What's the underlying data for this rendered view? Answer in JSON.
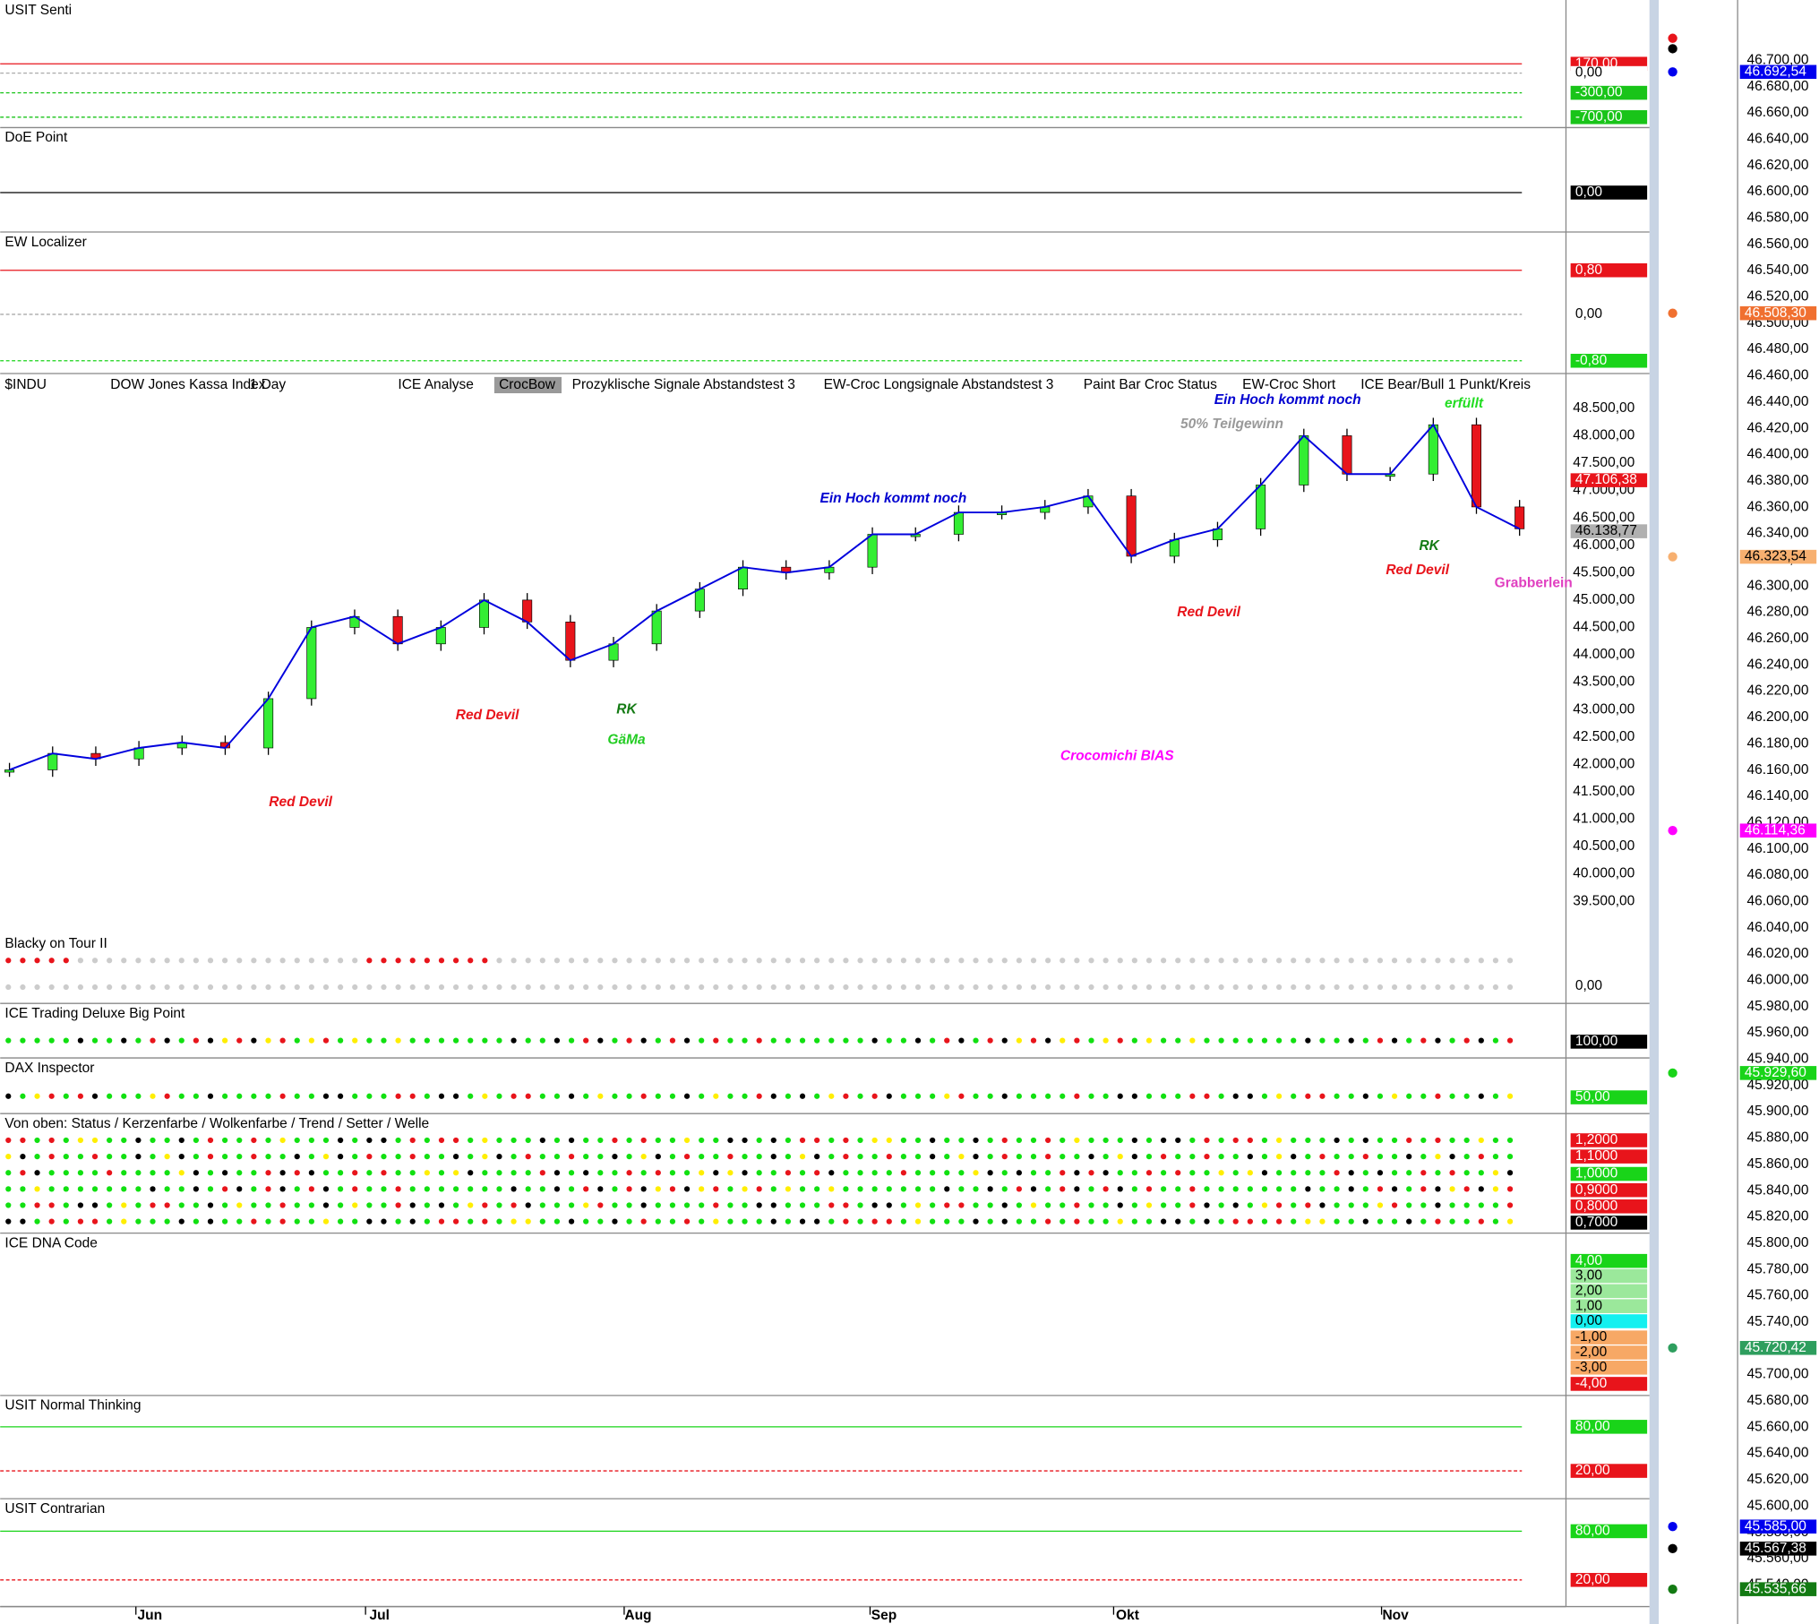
{
  "panels": [
    {
      "title": "USIT Senti",
      "tags": [
        {
          "text": "170,00",
          "color": "#e8141b"
        },
        {
          "text": "0,00",
          "color": "#ffffff"
        },
        {
          "text": "-300,00",
          "color": "#19c419"
        },
        {
          "text": "-700,00",
          "color": "#19c419"
        }
      ]
    },
    {
      "title": "DoE Point",
      "tags": [
        {
          "text": "0,00",
          "color": "#000000"
        }
      ]
    },
    {
      "title": "EW Localizer",
      "tags": [
        {
          "text": "0,80",
          "color": "#e8141b"
        },
        {
          "text": "0,00",
          "color": "#ffffff"
        },
        {
          "text": "-0,80",
          "color": "#19d419"
        }
      ]
    },
    {
      "title": "Blacky on Tour II",
      "tags": [
        {
          "text": "0,00",
          "color": "#ffffff"
        }
      ]
    },
    {
      "title": "ICE Trading Deluxe Big Point",
      "tags": [
        {
          "text": "100,00",
          "color": "#000000"
        }
      ]
    },
    {
      "title": "DAX Inspector",
      "tags": [
        {
          "text": "50,00",
          "color": "#19d419"
        }
      ]
    },
    {
      "title": "Von oben: Status / Kerzenfarbe / Wolkenfarbe / Trend / Setter / Welle",
      "tags": [
        {
          "text": "1,2000",
          "color": "#e8141b"
        },
        {
          "text": "1,1000",
          "color": "#e8141b"
        },
        {
          "text": "1,0000",
          "color": "#19d419"
        },
        {
          "text": "0,9000",
          "color": "#e8141b"
        },
        {
          "text": "0,8000",
          "color": "#e8141b"
        },
        {
          "text": "0,7000",
          "color": "#000000"
        }
      ]
    },
    {
      "title": "ICE DNA Code",
      "tags": [
        {
          "text": "4,00",
          "color": "#19d419"
        },
        {
          "text": "3,00",
          "color": "#9be89b"
        },
        {
          "text": "2,00",
          "color": "#9be89b"
        },
        {
          "text": "1,00",
          "color": "#9be89b"
        },
        {
          "text": "0,00",
          "color": "#14f0f0"
        },
        {
          "text": "-1,00",
          "color": "#f7a865"
        },
        {
          "text": "-2,00",
          "color": "#f7a865"
        },
        {
          "text": "-3,00",
          "color": "#f7a865"
        },
        {
          "text": "-4,00",
          "color": "#e8141b"
        }
      ]
    },
    {
      "title": "USIT Normal Thinking",
      "tags": [
        {
          "text": "80,00",
          "color": "#19d419"
        },
        {
          "text": "20,00",
          "color": "#e8141b"
        }
      ]
    },
    {
      "title": "USIT Contrarian",
      "tags": [
        {
          "text": "80,00",
          "color": "#19d419"
        },
        {
          "text": "20,00",
          "color": "#e8141b"
        }
      ]
    }
  ],
  "toolbar": [
    "$INDU",
    "DOW Jones Kassa Index",
    "1 Day",
    "ICE Analyse",
    "CrocBow",
    "Prozyklische Signale Abstandstest 3",
    "EW-Croc Longsignale Abstandstest 3",
    "Paint Bar Croc Status",
    "EW-Croc Short",
    "ICE Bear/Bull 1 Punkt/Kreis"
  ],
  "main": {
    "annotations": [
      {
        "text": "Ein Hoch kommt noch",
        "color": "#0000d0"
      },
      {
        "text": "Ein Hoch kommt noch",
        "color": "#0000d0"
      },
      {
        "text": "erfüllt",
        "color": "#22dd22"
      },
      {
        "text": "50% Teilgewinn",
        "color": "#999999"
      },
      {
        "text": "RK",
        "color": "#137a13"
      },
      {
        "text": "Red Devil",
        "color": "#e8141b"
      },
      {
        "text": "Grabberlein",
        "color": "#e040c0"
      },
      {
        "text": "Red Devil",
        "color": "#e8141b"
      },
      {
        "text": "Red Devil",
        "color": "#e8141b"
      },
      {
        "text": "RK",
        "color": "#137a13"
      },
      {
        "text": "GäMa",
        "color": "#22cc22"
      },
      {
        "text": "Red Devil",
        "color": "#e8141b"
      },
      {
        "text": "Crocomichi BIAS",
        "color": "#ff00ff"
      }
    ],
    "price_labels": [
      "48.500,00",
      "48.000,00",
      "47.500,00",
      "47.000,00",
      "46.500,00",
      "46.000,00",
      "45.500,00",
      "45.000,00",
      "44.500,00",
      "44.000,00",
      "43.500,00",
      "43.000,00",
      "42.500,00",
      "42.000,00",
      "41.500,00",
      "41.000,00",
      "40.500,00",
      "40.000,00",
      "39.500,00"
    ],
    "ylim": [
      39013,
      48966
    ],
    "tags": [
      {
        "text": "47.106,38",
        "color": "#e8141b"
      },
      {
        "text": "46.138,77",
        "color": "#b0b0b0"
      }
    ],
    "closes": [
      41900,
      42200,
      42100,
      42300,
      42400,
      42300,
      43200,
      44500,
      44700,
      44200,
      44500,
      45000,
      44600,
      43900,
      44200,
      44800,
      45200,
      45600,
      45500,
      45600,
      46200,
      46200,
      46600,
      46600,
      46700,
      46900,
      45800,
      46100,
      46300,
      47100,
      48000,
      47300,
      47300,
      48200,
      46700,
      46300
    ]
  },
  "months": [
    "Jun",
    "Jul",
    "Aug",
    "Sep",
    "Okt",
    "Nov"
  ],
  "far_axis": {
    "labels": [
      "46.700,00",
      "46.680,00",
      "46.660,00",
      "46.640,00",
      "46.620,00",
      "46.600,00",
      "46.580,00",
      "46.560,00",
      "46.540,00",
      "46.520,00",
      "46.500,00",
      "46.480,00",
      "46.460,00",
      "46.440,00",
      "46.420,00",
      "46.400,00",
      "46.380,00",
      "46.360,00",
      "46.340,00",
      "46.320,00",
      "46.300,00",
      "46.280,00",
      "46.260,00",
      "46.240,00",
      "46.220,00",
      "46.200,00",
      "46.180,00",
      "46.160,00",
      "46.140,00",
      "46.120,00",
      "46.100,00",
      "46.080,00",
      "46.060,00",
      "46.040,00",
      "46.020,00",
      "46.000,00",
      "45.980,00",
      "45.960,00",
      "45.940,00",
      "45.920,00",
      "45.900,00",
      "45.880,00",
      "45.860,00",
      "45.840,00",
      "45.820,00",
      "45.800,00",
      "45.780,00",
      "45.760,00",
      "45.740,00",
      "45.720,00",
      "45.700,00",
      "45.680,00",
      "45.660,00",
      "45.640,00",
      "45.620,00",
      "45.600,00",
      "45.580,00",
      "45.560,00",
      "45.540,00"
    ],
    "tags": [
      {
        "text": "46.692,54",
        "color": "#0000ee"
      },
      {
        "text": "46.508,30",
        "color": "#f07030"
      },
      {
        "text": "46.323,54",
        "color": "#f7b070"
      },
      {
        "text": "46.114,36",
        "color": "#ff00ff"
      },
      {
        "text": "45.929,60",
        "color": "#19d419"
      },
      {
        "text": "45.720,42",
        "color": "#2e9e5e"
      },
      {
        "text": "45.585,00",
        "color": "#0000ee"
      },
      {
        "text": "45.567,38",
        "color": "#000000"
      },
      {
        "text": "45.535,66",
        "color": "#137a13"
      }
    ]
  }
}
